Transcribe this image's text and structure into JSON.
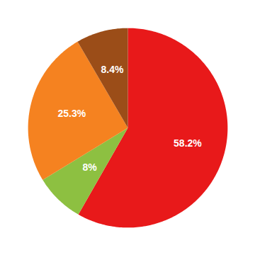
{
  "chart_data": {
    "type": "pie",
    "values": [
      58.2,
      8.0,
      25.3,
      8.4
    ],
    "value_labels": [
      "58.2%",
      "8%",
      "25.3%",
      "8.4%"
    ],
    "colors": [
      "#e8191a",
      "#8dc041",
      "#f58220",
      "#9b4d18"
    ],
    "data_labels": true
  }
}
